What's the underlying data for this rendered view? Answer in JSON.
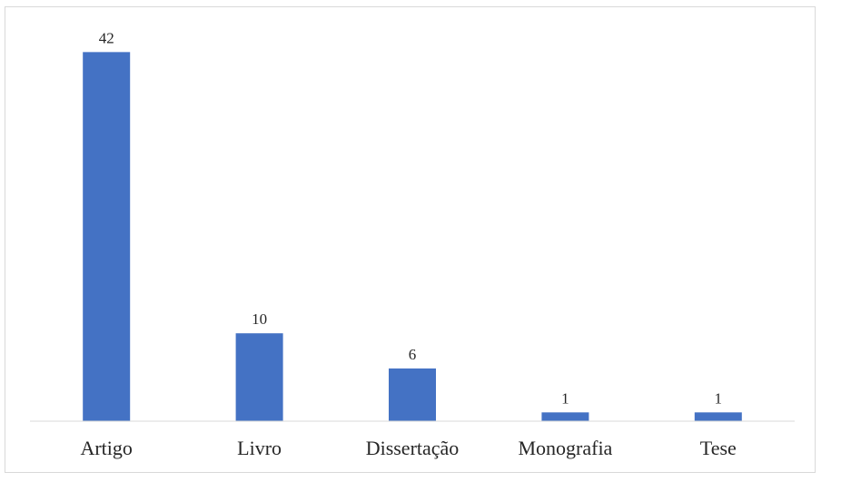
{
  "chart_data": {
    "type": "bar",
    "title": "",
    "xlabel": "",
    "ylabel": "",
    "categories": [
      "Artigo",
      "Livro",
      "Dissertação",
      "Monografia",
      "Tese"
    ],
    "values": [
      42,
      10,
      6,
      1,
      1
    ],
    "ylim": [
      0,
      44
    ],
    "grid": false,
    "legend": "none",
    "data_labels": true,
    "bar_color": "#4472C4",
    "axis_color": "#d9d9d9"
  }
}
